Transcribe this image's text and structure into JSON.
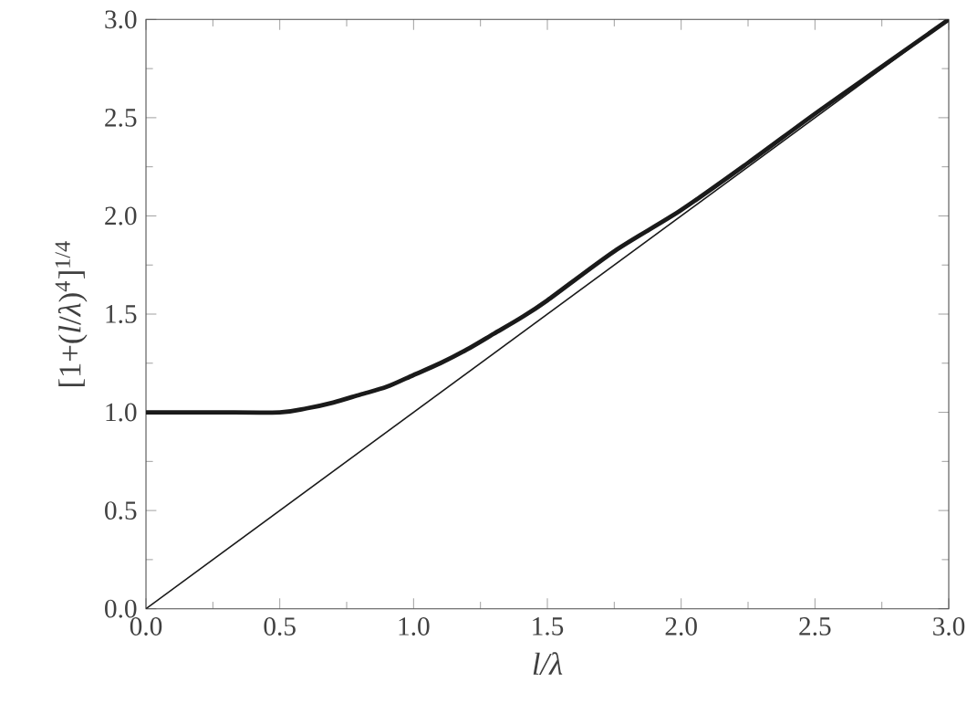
{
  "chart_data": {
    "type": "line",
    "xlabel": "l/λ",
    "ylabel": "[1+(*l*/*λ*)$^{4}$]$^{1/4}$",
    "xlim": [
      0,
      3
    ],
    "ylim": [
      0,
      3
    ],
    "xticks": [
      {
        "value": 0,
        "label": "0.0"
      },
      {
        "value": 0.5,
        "label": "0.5"
      },
      {
        "value": 1,
        "label": "1.0"
      },
      {
        "value": 1.5,
        "label": "1.5"
      },
      {
        "value": 2,
        "label": "2.0"
      },
      {
        "value": 2.5,
        "label": "2.5"
      },
      {
        "value": 3,
        "label": "3.0"
      }
    ],
    "yticks": [
      {
        "value": 0,
        "label": "0.0"
      },
      {
        "value": 0.5,
        "label": "0.5"
      },
      {
        "value": 1,
        "label": "1.0"
      },
      {
        "value": 1.5,
        "label": "1.5"
      },
      {
        "value": 2,
        "label": "2.0"
      },
      {
        "value": 2.5,
        "label": "2.5"
      },
      {
        "value": 3,
        "label": "3.0"
      }
    ],
    "marker": "none",
    "line_style": "solid",
    "series": [
      {
        "color": "#1a1a1a",
        "x": [
          0,
          0.25,
          0.5,
          0.6,
          0.7,
          0.8,
          0.9,
          1.0,
          1.1,
          1.2,
          1.3,
          1.4,
          1.5,
          1.75,
          2.0,
          2.25,
          2.5,
          2.75,
          3.0
        ],
        "values": [
          1.0,
          1.0,
          1.0,
          1.02,
          1.05,
          1.09,
          1.13,
          1.19,
          1.25,
          1.32,
          1.4,
          1.48,
          1.57,
          1.82,
          2.03,
          2.27,
          2.52,
          2.76,
          3.0
        ]
      },
      {
        "color": "#1a1a1a",
        "x": [
          0,
          3
        ],
        "values": [
          0,
          3
        ]
      }
    ]
  }
}
